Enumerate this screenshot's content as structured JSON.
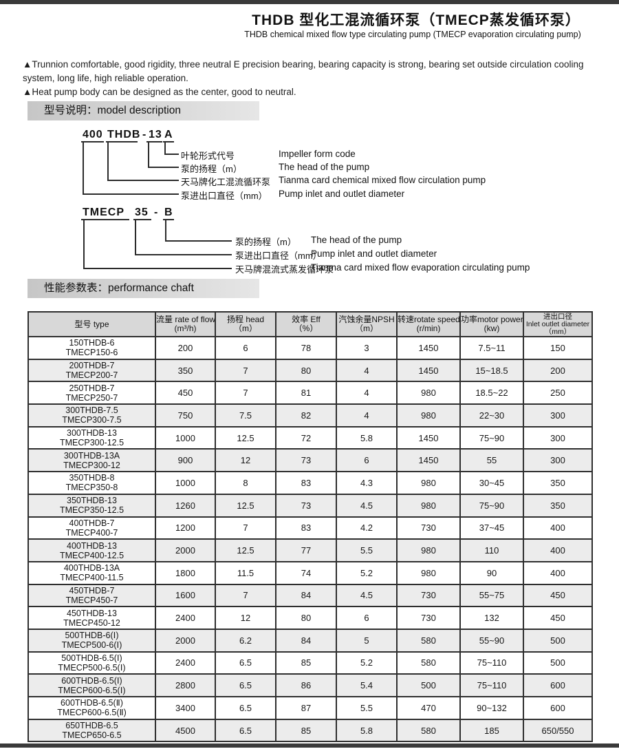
{
  "header": {
    "title_cn": "THDB 型化工混流循环泵（TMECP蒸发循环泵）",
    "title_en": "THDB chemical mixed flow type circulating pump (TMECP evaporation circulating pump)"
  },
  "features": [
    "▲Trunnion comfortable, good rigidity, three neutral E precision bearing, bearing capacity is strong, bearing set outside circulation cooling system, long life, high reliable operation.",
    "▲Heat pump body can be designed as the center, good to neutral."
  ],
  "sections": {
    "model_description": "型号说明：model description",
    "performance": "性能参数表：performance chaft"
  },
  "diagram1": {
    "tokens": {
      "t1": "400",
      "t2": "THDB",
      "t3": "-",
      "t4": "13",
      "t5": "A"
    },
    "rows": [
      {
        "cn": "叶轮形式代号",
        "en": "Impeller form code"
      },
      {
        "cn": "泵的扬程（m）",
        "en": "The head of the pump"
      },
      {
        "cn": "天马牌化工混流循环泵",
        "en": "Tianma card chemical mixed flow circulation pump"
      },
      {
        "cn": "泵进出口直径（mm）",
        "en": "Pump inlet and outlet diameter"
      }
    ]
  },
  "diagram2": {
    "tokens": {
      "t1": "TMECP",
      "t2": "35",
      "t3": "-",
      "t4": "B"
    },
    "rows": [
      {
        "cn": "泵的扬程（m）",
        "en": "The head of the pump"
      },
      {
        "cn": "泵进出口直径（mm）",
        "en": "Pump inlet and outlet diameter"
      },
      {
        "cn": "天马牌混流式蒸发循环泵",
        "en": "Tianma card mixed flow evaporation circulating pump"
      }
    ]
  },
  "table": {
    "headers": [
      [
        "型号 type"
      ],
      [
        "流量 rate of flow",
        "(m³/h)"
      ],
      [
        "扬程 head",
        "（m）"
      ],
      [
        "效率 Eff",
        "（%）"
      ],
      [
        "汽蚀余量NPSH",
        "（m）"
      ],
      [
        "转速rotate speed",
        "(r/min)"
      ],
      [
        "功率motor power",
        "(kw)"
      ],
      [
        "进出口径",
        "Inlet outlet diameter",
        "（mm）"
      ]
    ],
    "rows": [
      [
        "150THDB-6",
        "TMECP150-6",
        "200",
        "6",
        "78",
        "3",
        "1450",
        "7.5~11",
        "150"
      ],
      [
        "200THDB-7",
        "TMECP200-7",
        "350",
        "7",
        "80",
        "4",
        "1450",
        "15~18.5",
        "200"
      ],
      [
        "250THDB-7",
        "TMECP250-7",
        "450",
        "7",
        "81",
        "4",
        "980",
        "18.5~22",
        "250"
      ],
      [
        "300THDB-7.5",
        "TMECP300-7.5",
        "750",
        "7.5",
        "82",
        "4",
        "980",
        "22~30",
        "300"
      ],
      [
        "300THDB-13",
        "TMECP300-12.5",
        "1000",
        "12.5",
        "72",
        "5.8",
        "1450",
        "75~90",
        "300"
      ],
      [
        "300THDB-13A",
        "TMECP300-12",
        "900",
        "12",
        "73",
        "6",
        "1450",
        "55",
        "300"
      ],
      [
        "350THDB-8",
        "TMECP350-8",
        "1000",
        "8",
        "83",
        "4.3",
        "980",
        "30~45",
        "350"
      ],
      [
        "350THDB-13",
        "TMECP350-12.5",
        "1260",
        "12.5",
        "73",
        "4.5",
        "980",
        "75~90",
        "350"
      ],
      [
        "400THDB-7",
        "TMECP400-7",
        "1200",
        "7",
        "83",
        "4.2",
        "730",
        "37~45",
        "400"
      ],
      [
        "400THDB-13",
        "TMECP400-12.5",
        "2000",
        "12.5",
        "77",
        "5.5",
        "980",
        "110",
        "400"
      ],
      [
        "400THDB-13A",
        "TMECP400-11.5",
        "1800",
        "11.5",
        "74",
        "5.2",
        "980",
        "90",
        "400"
      ],
      [
        "450THDB-7",
        "TMECP450-7",
        "1600",
        "7",
        "84",
        "4.5",
        "730",
        "55~75",
        "450"
      ],
      [
        "450THDB-13",
        "TMECP450-12",
        "2400",
        "12",
        "80",
        "6",
        "730",
        "132",
        "450"
      ],
      [
        "500THDB-6(Ⅰ)",
        "TMECP500-6(Ⅰ)",
        "2000",
        "6.2",
        "84",
        "5",
        "580",
        "55~90",
        "500"
      ],
      [
        "500THDB-6.5(Ⅰ)",
        "TMECP500-6.5(Ⅰ)",
        "2400",
        "6.5",
        "85",
        "5.2",
        "580",
        "75~110",
        "500"
      ],
      [
        "600THDB-6.5(Ⅰ)",
        "TMECP600-6.5(Ⅰ)",
        "2800",
        "6.5",
        "86",
        "5.4",
        "500",
        "75~110",
        "600"
      ],
      [
        "600THDB-6.5(Ⅱ)",
        "TMECP600-6.5(Ⅱ)",
        "3400",
        "6.5",
        "87",
        "5.5",
        "470",
        "90~132",
        "600"
      ],
      [
        "650THDB-6.5",
        "TMECP650-6.5",
        "4500",
        "6.5",
        "85",
        "5.8",
        "580",
        "185",
        "650/550"
      ]
    ]
  },
  "colors": {
    "edge_bar": "#3a3a3a",
    "section_bar": "#c6c6c6",
    "table_header_bg": "#d8d8d8",
    "row_alt_bg": "#ececec"
  }
}
